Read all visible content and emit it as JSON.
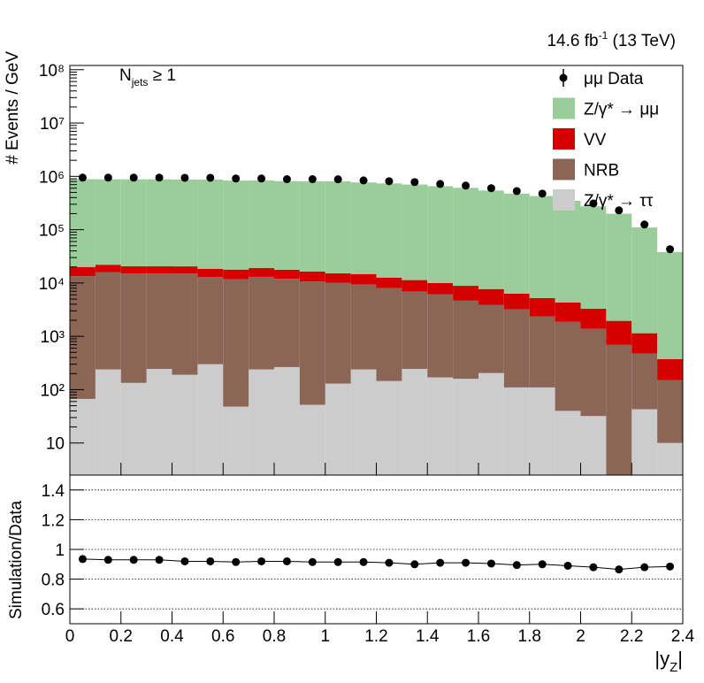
{
  "chart_data": [
    {
      "type": "histogram",
      "ylabel": "# Events / GeV",
      "lumi": {
        "text": "14.6 fb",
        "superscript": "-1",
        "suffix": " (13 TeV)"
      },
      "annotation": {
        "text": "N",
        "subscript": "jets",
        "suffix": " ≥ 1"
      },
      "bins": [
        0,
        0.1,
        0.2,
        0.3,
        0.4,
        0.5,
        0.6,
        0.7,
        0.8,
        0.9,
        1,
        1.1,
        1.2,
        1.3,
        1.4,
        1.5,
        1.6,
        1.7,
        1.8,
        1.9,
        2,
        2.1,
        2.2,
        2.3,
        2.4
      ],
      "xlim": [
        0,
        2.4
      ],
      "ylim": [
        2.5,
        120000000
      ],
      "log_y": true,
      "yticks": [
        10,
        {
          "value": 100,
          "label": "10²"
        },
        {
          "value": 1000,
          "label": "10³"
        },
        {
          "value": 10000,
          "label": "10⁴"
        },
        {
          "value": 100000,
          "label": "10⁵"
        },
        {
          "value": 1000000,
          "label": "10⁶"
        },
        {
          "value": 10000000,
          "label": "10⁷"
        },
        {
          "value": 100000000,
          "label": "10⁸"
        }
      ],
      "legend": "top-right",
      "stacked": true,
      "series": [
        {
          "name": "μμ Data",
          "color": "#000000",
          "marker": "circle",
          "values": [
            945000,
            945000,
            945000,
            945000,
            940000,
            940000,
            910000,
            910000,
            885000,
            885000,
            880000,
            840000,
            810000,
            780000,
            720000,
            670000,
            600000,
            530000,
            475000,
            390000,
            310000,
            230000,
            125000,
            43000
          ]
        },
        {
          "name": "Z/γ* → μμ",
          "color": "#9acd9a",
          "values": [
            864000,
            857000,
            858000,
            858000,
            849000,
            851000,
            815000,
            818000,
            796000,
            793000,
            795000,
            754000,
            724000,
            691000,
            645000,
            601000,
            535000,
            468000,
            423000,
            343000,
            270000,
            197000,
            109000,
            37600
          ]
        },
        {
          "name": "VV",
          "color": "#d40000",
          "values": [
            6500,
            6200,
            5500,
            5500,
            5500,
            5500,
            6100,
            6000,
            5800,
            5800,
            5200,
            5400,
            4600,
            4400,
            3800,
            4200,
            3800,
            3100,
            2850,
            2430,
            1920,
            1260,
            670,
            225
          ]
        },
        {
          "name": "NRB",
          "color": "#8b6657",
          "values": [
            13400,
            15600,
            14900,
            14800,
            14800,
            12700,
            11700,
            12800,
            11700,
            10600,
            9900,
            9100,
            7900,
            6700,
            6000,
            4500,
            3700,
            3100,
            2240,
            1830,
            1350,
            690,
            430,
            140
          ]
        },
        {
          "name": "Z/γ* → ττ",
          "color": "#cccccc",
          "values": [
            67,
            240,
            134,
            245,
            190,
            300,
            48,
            240,
            265,
            52,
            130,
            240,
            145,
            245,
            170,
            160,
            205,
            110,
            110,
            40,
            32,
            0,
            43,
            10
          ]
        }
      ]
    },
    {
      "type": "line",
      "ylabel": "Simulation/Data",
      "xlabel": {
        "text": "|y",
        "subscript": "Z",
        "suffix": "|"
      },
      "x": [
        0.05,
        0.15,
        0.25,
        0.35,
        0.45,
        0.55,
        0.65,
        0.75,
        0.85,
        0.95,
        1.05,
        1.15,
        1.25,
        1.35,
        1.45,
        1.55,
        1.65,
        1.75,
        1.85,
        1.95,
        2.05,
        2.15,
        2.25,
        2.35
      ],
      "values": [
        0.935,
        0.93,
        0.93,
        0.93,
        0.92,
        0.92,
        0.915,
        0.92,
        0.92,
        0.915,
        0.915,
        0.915,
        0.91,
        0.9,
        0.91,
        0.91,
        0.905,
        0.895,
        0.9,
        0.89,
        0.88,
        0.865,
        0.88,
        0.885
      ],
      "color": "#000000",
      "xlim": [
        0,
        2.4
      ],
      "ylim": [
        0.5,
        1.5
      ],
      "xticks": [
        0,
        0.2,
        0.4,
        0.6,
        0.8,
        1,
        1.2,
        1.4,
        1.6,
        1.8,
        2,
        2.2,
        2.4
      ],
      "yticks": [
        0.6,
        0.8,
        1,
        1.2,
        1.4
      ],
      "grid": true
    }
  ]
}
